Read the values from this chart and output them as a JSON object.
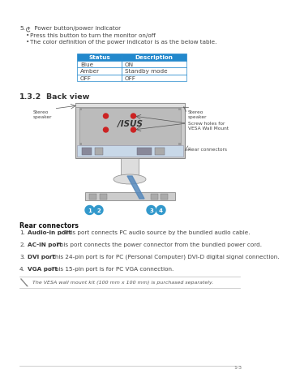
{
  "bg_color": "#ffffff",
  "page_num": "1-3",
  "section_num": "5.",
  "section_title": " Power button/power indicator",
  "bullet1": "Press this button to turn the monitor on/off",
  "bullet2": "The color definition of the power indicator is as the below table.",
  "table_header": [
    "Status",
    "Description"
  ],
  "table_rows": [
    [
      "Blue",
      "ON"
    ],
    [
      "Amber",
      "Standby mode"
    ],
    [
      "OFF",
      "OFF"
    ]
  ],
  "table_header_bg": "#2288cc",
  "table_header_fg": "#ffffff",
  "table_border": "#2288cc",
  "subsection": "1.3.2",
  "subsection_title": "Back view",
  "label_stereo_left": "Stereo\nspeaker",
  "label_stereo_right": "Stereo\nspeaker",
  "label_screw": "Screw holes for\nVESA Wall Mount",
  "label_rear": "Rear connectors",
  "rear_title": "Rear connectors",
  "items": [
    {
      "num": "1.",
      "bold": "Audio-in port",
      "rest": ". This port connects PC audio source by the bundled audio cable."
    },
    {
      "num": "2.",
      "bold": "AC-IN port",
      "rest": ". This port connects the power connector from the bundled power cord."
    },
    {
      "num": "3.",
      "bold": "DVI port",
      "rest": ". This 24-pin port is for PC (Personal Computer) DVI-D digital signal connection."
    },
    {
      "num": "4.",
      "bold": "VGA port",
      "rest": ". This 15-pin port is for PC VGA connection."
    }
  ],
  "note_text": "The VESA wall mount kit (100 mm x 100 mm) is purchased separately.",
  "circle_color": "#3399cc",
  "red_dot_color": "#cc2222",
  "mon_frame_color": "#cccccc",
  "mon_inner_color": "#bbbbbb",
  "mon_border_color": "#888888",
  "stand_color": "#dddddd",
  "base_color": "#cccccc",
  "wedge_color": "#5588bb",
  "connector_bar_color": "#c8d8e8",
  "connector_slot_color": "#aaaaaa"
}
